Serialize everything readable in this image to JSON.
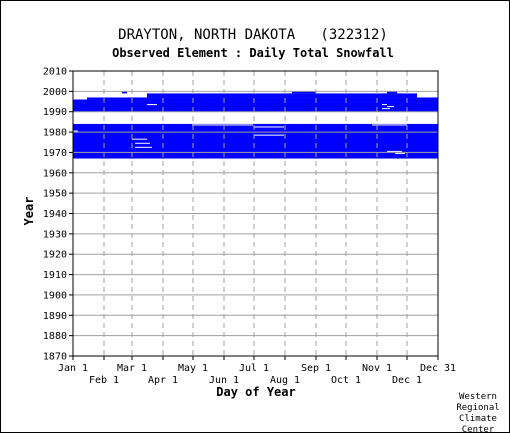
{
  "chart_data": {
    "type": "heatmap",
    "station_title": "DRAYTON, NORTH DAKOTA   (322312)",
    "title": "Observed Element : Daily Total Snowfall",
    "xlabel": "Day of Year",
    "ylabel": "Year",
    "ylim": [
      1870,
      2010
    ],
    "yticks": [
      1870,
      1880,
      1890,
      1900,
      1910,
      1920,
      1930,
      1940,
      1950,
      1960,
      1970,
      1980,
      1990,
      2000,
      2010
    ],
    "xlim": [
      1,
      366
    ],
    "month_ticks_upper": [
      {
        "label": "Jan 1",
        "day": 1
      },
      {
        "label": "Mar 1",
        "day": 60
      },
      {
        "label": "May 1",
        "day": 121
      },
      {
        "label": "Jul 1",
        "day": 182
      },
      {
        "label": "Sep 1",
        "day": 244
      },
      {
        "label": "Nov 1",
        "day": 305
      },
      {
        "label": "Dec 31",
        "day": 366
      }
    ],
    "month_ticks_lower": [
      {
        "label": "Feb 1",
        "day": 32
      },
      {
        "label": "Apr 1",
        "day": 91
      },
      {
        "label": "Jun 1",
        "day": 152
      },
      {
        "label": "Aug 1",
        "day": 213
      },
      {
        "label": "Oct 1",
        "day": 274
      },
      {
        "label": "Dec 1",
        "day": 335
      }
    ],
    "grid": true,
    "data_color": "#0000ff",
    "coverage": [
      {
        "year_start": 1967,
        "year_end": 1984,
        "day_start": 1,
        "day_end": 366
      },
      {
        "year_start": 1990,
        "year_end": 1996,
        "day_start": 1,
        "day_end": 366
      },
      {
        "year_start": 1996,
        "year_end": 1997,
        "day_start": 15,
        "day_end": 366
      },
      {
        "year_start": 1997,
        "year_end": 1999,
        "day_start": 75,
        "day_end": 345
      },
      {
        "year_start": 1999,
        "year_end": 2000,
        "day_start": 220,
        "day_end": 244
      },
      {
        "year_start": 1999,
        "year_end": 2000,
        "day_start": 50,
        "day_end": 55
      },
      {
        "year_start": 1999,
        "year_end": 2000,
        "day_start": 315,
        "day_end": 325
      }
    ],
    "gaps": [
      {
        "year_start": 1984,
        "year_end": 1990,
        "day_start": 1,
        "day_end": 366
      },
      {
        "year_start": 1984,
        "year_end": 1986,
        "day_start": 1,
        "day_end": 366
      },
      {
        "year_start": 1983,
        "year_end": 1984,
        "day_start": 120,
        "day_end": 150
      },
      {
        "year_start": 1983,
        "year_end": 1984,
        "day_start": 150,
        "day_end": 181
      },
      {
        "year_start": 1983,
        "year_end": 1984,
        "day_start": 300,
        "day_end": 335
      },
      {
        "year_start": 1982,
        "year_end": 1983,
        "day_start": 182,
        "day_end": 212
      },
      {
        "year_start": 1978,
        "year_end": 1979,
        "day_start": 182,
        "day_end": 212
      },
      {
        "year_start": 1976,
        "year_end": 1977,
        "day_start": 60,
        "day_end": 75
      },
      {
        "year_start": 1974,
        "year_end": 1975,
        "day_start": 63,
        "day_end": 78
      },
      {
        "year_start": 1972,
        "year_end": 1973,
        "day_start": 63,
        "day_end": 80
      },
      {
        "year_start": 1970,
        "year_end": 1971,
        "day_start": 315,
        "day_end": 330
      },
      {
        "year_start": 1969,
        "year_end": 1970,
        "day_start": 323,
        "day_end": 333
      },
      {
        "year_start": 1980,
        "year_end": 1981,
        "day_start": 1,
        "day_end": 6
      },
      {
        "year_start": 1993,
        "year_end": 1994,
        "day_start": 75,
        "day_end": 85
      },
      {
        "year_start": 1993,
        "year_end": 1994,
        "day_start": 310,
        "day_end": 315
      },
      {
        "year_start": 1991,
        "year_end": 1992,
        "day_start": 310,
        "day_end": 318
      },
      {
        "year_start": 1992,
        "year_end": 1993,
        "day_start": 315,
        "day_end": 322
      }
    ]
  },
  "credit": [
    "Western",
    "Regional",
    "Climate",
    "Center"
  ]
}
